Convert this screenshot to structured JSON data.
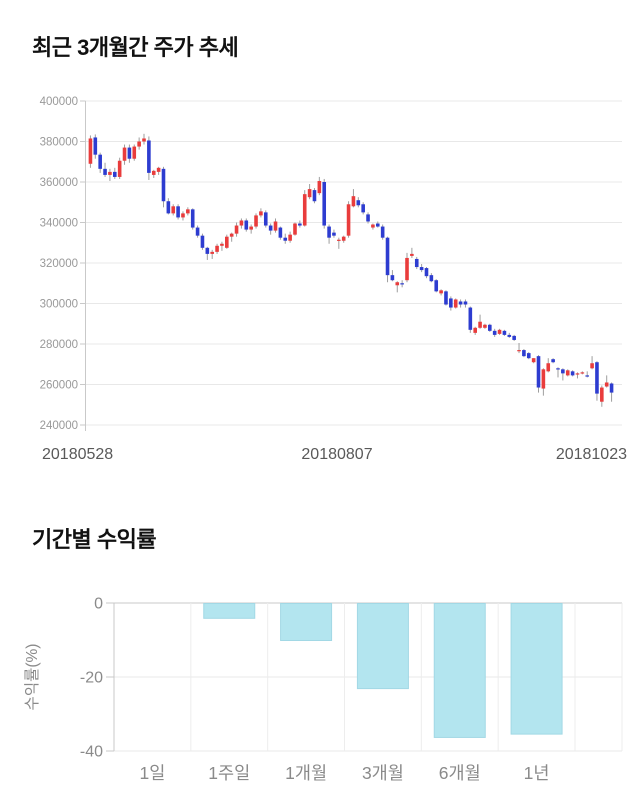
{
  "chart_data": [
    {
      "type": "candlestick",
      "title": "최근 3개월간 주가 추세",
      "ylim": [
        240000,
        400000
      ],
      "y_ticks": [
        400000,
        380000,
        360000,
        340000,
        320000,
        300000,
        280000,
        260000,
        240000
      ],
      "x_labels": [
        "20180528",
        "20180807",
        "20181023"
      ],
      "grid": "horizontal",
      "legend": "none",
      "colors": {
        "up": "#e93c3c",
        "down": "#2d3cd0",
        "wick": "#9e9e9e",
        "grid": "#e8e8e8",
        "axis": "#c9c9c9",
        "tick_text": "#999999",
        "date_text": "#595959"
      },
      "candles_ohlc": [
        [
          369000,
          383000,
          367000,
          381500
        ],
        [
          382000,
          383500,
          371500,
          373500
        ],
        [
          373500,
          374500,
          364500,
          366500
        ],
        [
          366500,
          369500,
          362500,
          363500
        ],
        [
          363500,
          366500,
          360500,
          365000
        ],
        [
          365000,
          367000,
          361500,
          362500
        ],
        [
          362500,
          372000,
          361500,
          370500
        ],
        [
          370500,
          378500,
          368500,
          377000
        ],
        [
          377000,
          378500,
          369500,
          371500
        ],
        [
          371500,
          378500,
          370500,
          377500
        ],
        [
          377500,
          382000,
          376000,
          380000
        ],
        [
          380000,
          383800,
          378500,
          381500
        ],
        [
          380500,
          382500,
          361000,
          364500
        ],
        [
          363500,
          366000,
          362000,
          365500
        ],
        [
          365000,
          367500,
          363500,
          367000
        ],
        [
          366500,
          367500,
          347500,
          350500
        ],
        [
          350500,
          352000,
          344000,
          344500
        ],
        [
          344500,
          349000,
          343500,
          348000
        ],
        [
          348000,
          349000,
          341500,
          342500
        ],
        [
          342500,
          345500,
          341000,
          344500
        ],
        [
          344500,
          347500,
          343500,
          346500
        ],
        [
          346500,
          347000,
          336500,
          337500
        ],
        [
          337500,
          338500,
          332500,
          333500
        ],
        [
          333500,
          334500,
          326500,
          327500
        ],
        [
          327500,
          328000,
          321500,
          324500
        ],
        [
          324500,
          326500,
          322000,
          325500
        ],
        [
          325500,
          329500,
          324500,
          328500
        ],
        [
          328500,
          330500,
          326000,
          329500
        ],
        [
          327500,
          334000,
          327000,
          333000
        ],
        [
          333000,
          335000,
          330500,
          334500
        ],
        [
          334500,
          340000,
          333000,
          338500
        ],
        [
          338500,
          342000,
          337000,
          341000
        ],
        [
          341000,
          342000,
          335500,
          336500
        ],
        [
          336500,
          339000,
          334500,
          338000
        ],
        [
          338000,
          344500,
          337000,
          343500
        ],
        [
          343500,
          347000,
          342500,
          345500
        ],
        [
          345000,
          346000,
          337500,
          338500
        ],
        [
          338500,
          339500,
          334000,
          336000
        ],
        [
          336000,
          342000,
          335000,
          340500
        ],
        [
          337500,
          338000,
          331500,
          332500
        ],
        [
          332500,
          334500,
          329500,
          331000
        ],
        [
          331000,
          335500,
          330000,
          334000
        ],
        [
          334000,
          340000,
          333500,
          339500
        ],
        [
          339500,
          341000,
          337500,
          338500
        ],
        [
          338500,
          356000,
          338000,
          354000
        ],
        [
          352500,
          359000,
          351500,
          356500
        ],
        [
          356000,
          357000,
          349500,
          350500
        ],
        [
          354500,
          362500,
          353500,
          360500
        ],
        [
          360000,
          361500,
          337000,
          338500
        ],
        [
          338000,
          339000,
          329500,
          332500
        ],
        [
          335000,
          336500,
          332500,
          333500
        ],
        [
          331500,
          332500,
          327000,
          331500
        ],
        [
          331000,
          333500,
          330000,
          333000
        ],
        [
          333500,
          350500,
          332500,
          349000
        ],
        [
          348000,
          356500,
          347500,
          353000
        ],
        [
          351000,
          352500,
          347500,
          348500
        ],
        [
          349000,
          350000,
          344000,
          345000
        ],
        [
          344000,
          345000,
          339500,
          340500
        ],
        [
          337500,
          339500,
          336500,
          339000
        ],
        [
          339500,
          340500,
          337500,
          338000
        ],
        [
          338000,
          339000,
          331500,
          332500
        ],
        [
          332500,
          333000,
          310500,
          314000
        ],
        [
          314000,
          316500,
          311000,
          311500
        ],
        [
          309000,
          311000,
          305500,
          310500
        ],
        [
          310000,
          311500,
          308000,
          309500
        ],
        [
          311500,
          325000,
          310500,
          322500
        ],
        [
          323500,
          327500,
          322500,
          324500
        ],
        [
          322000,
          323000,
          317000,
          318000
        ],
        [
          318000,
          319500,
          315500,
          316500
        ],
        [
          317500,
          318000,
          312500,
          313500
        ],
        [
          314000,
          315000,
          310500,
          311000
        ],
        [
          311500,
          312000,
          305500,
          306000
        ],
        [
          305000,
          307000,
          304000,
          306500
        ],
        [
          306000,
          306500,
          299000,
          299500
        ],
        [
          302500,
          303500,
          296500,
          298000
        ],
        [
          298000,
          302500,
          297500,
          302000
        ],
        [
          301000,
          302000,
          298000,
          299500
        ],
        [
          301000,
          302000,
          298000,
          299500
        ],
        [
          298000,
          298500,
          285500,
          287000
        ],
        [
          285500,
          288500,
          284500,
          288000
        ],
        [
          288000,
          294500,
          287500,
          291000
        ],
        [
          288000,
          290000,
          287500,
          289500
        ],
        [
          289500,
          290000,
          286000,
          286500
        ],
        [
          286500,
          287500,
          283500,
          284500
        ],
        [
          285000,
          287500,
          284500,
          287000
        ],
        [
          286500,
          287000,
          284000,
          284500
        ],
        [
          284500,
          285500,
          283000,
          283500
        ],
        [
          284000,
          284500,
          281500,
          282000
        ],
        [
          277000,
          280500,
          275500,
          277000
        ],
        [
          277000,
          277500,
          273500,
          274000
        ],
        [
          275500,
          276000,
          272500,
          273000
        ],
        [
          271000,
          273000,
          270500,
          273000
        ],
        [
          274000,
          274500,
          256000,
          258500
        ],
        [
          258000,
          268000,
          254500,
          267500
        ],
        [
          266500,
          273000,
          266000,
          270500
        ],
        [
          272500,
          273000,
          270500,
          271000
        ],
        [
          268000,
          268500,
          263500,
          267500
        ],
        [
          267500,
          268000,
          262000,
          265500
        ],
        [
          264500,
          267500,
          264000,
          267000
        ],
        [
          266500,
          267000,
          264000,
          264500
        ],
        [
          265000,
          266000,
          263000,
          265500
        ],
        [
          265500,
          266500,
          265000,
          266000
        ],
        [
          264500,
          266500,
          263500,
          264000
        ],
        [
          268000,
          274000,
          267500,
          270500
        ],
        [
          271000,
          271500,
          252000,
          255500
        ],
        [
          251500,
          259500,
          249000,
          258500
        ],
        [
          259000,
          264500,
          258500,
          261000
        ],
        [
          260500,
          261000,
          251500,
          256000
        ]
      ]
    },
    {
      "type": "bar",
      "title": "기간별 수익률",
      "ylabel": "수익률(%)",
      "categories": [
        "1일",
        "1주일",
        "1개월",
        "3개월",
        "6개월",
        "1년"
      ],
      "values": [
        0,
        -4,
        -10,
        -23,
        -36.2,
        -35.3
      ],
      "y_ticks": [
        0,
        -20,
        -40
      ],
      "ylim": [
        -40,
        0
      ],
      "grid": "both",
      "legend": "none",
      "bar_color": "#b3e5ef",
      "bar_border": "#a2d8e5",
      "colors": {
        "grid": "#e8e8e8",
        "axis": "#c9c9c9",
        "tick_text": "#8a8a8a",
        "category_text": "#8a8a8a",
        "ylabel_text": "#8a8a8a"
      }
    }
  ]
}
